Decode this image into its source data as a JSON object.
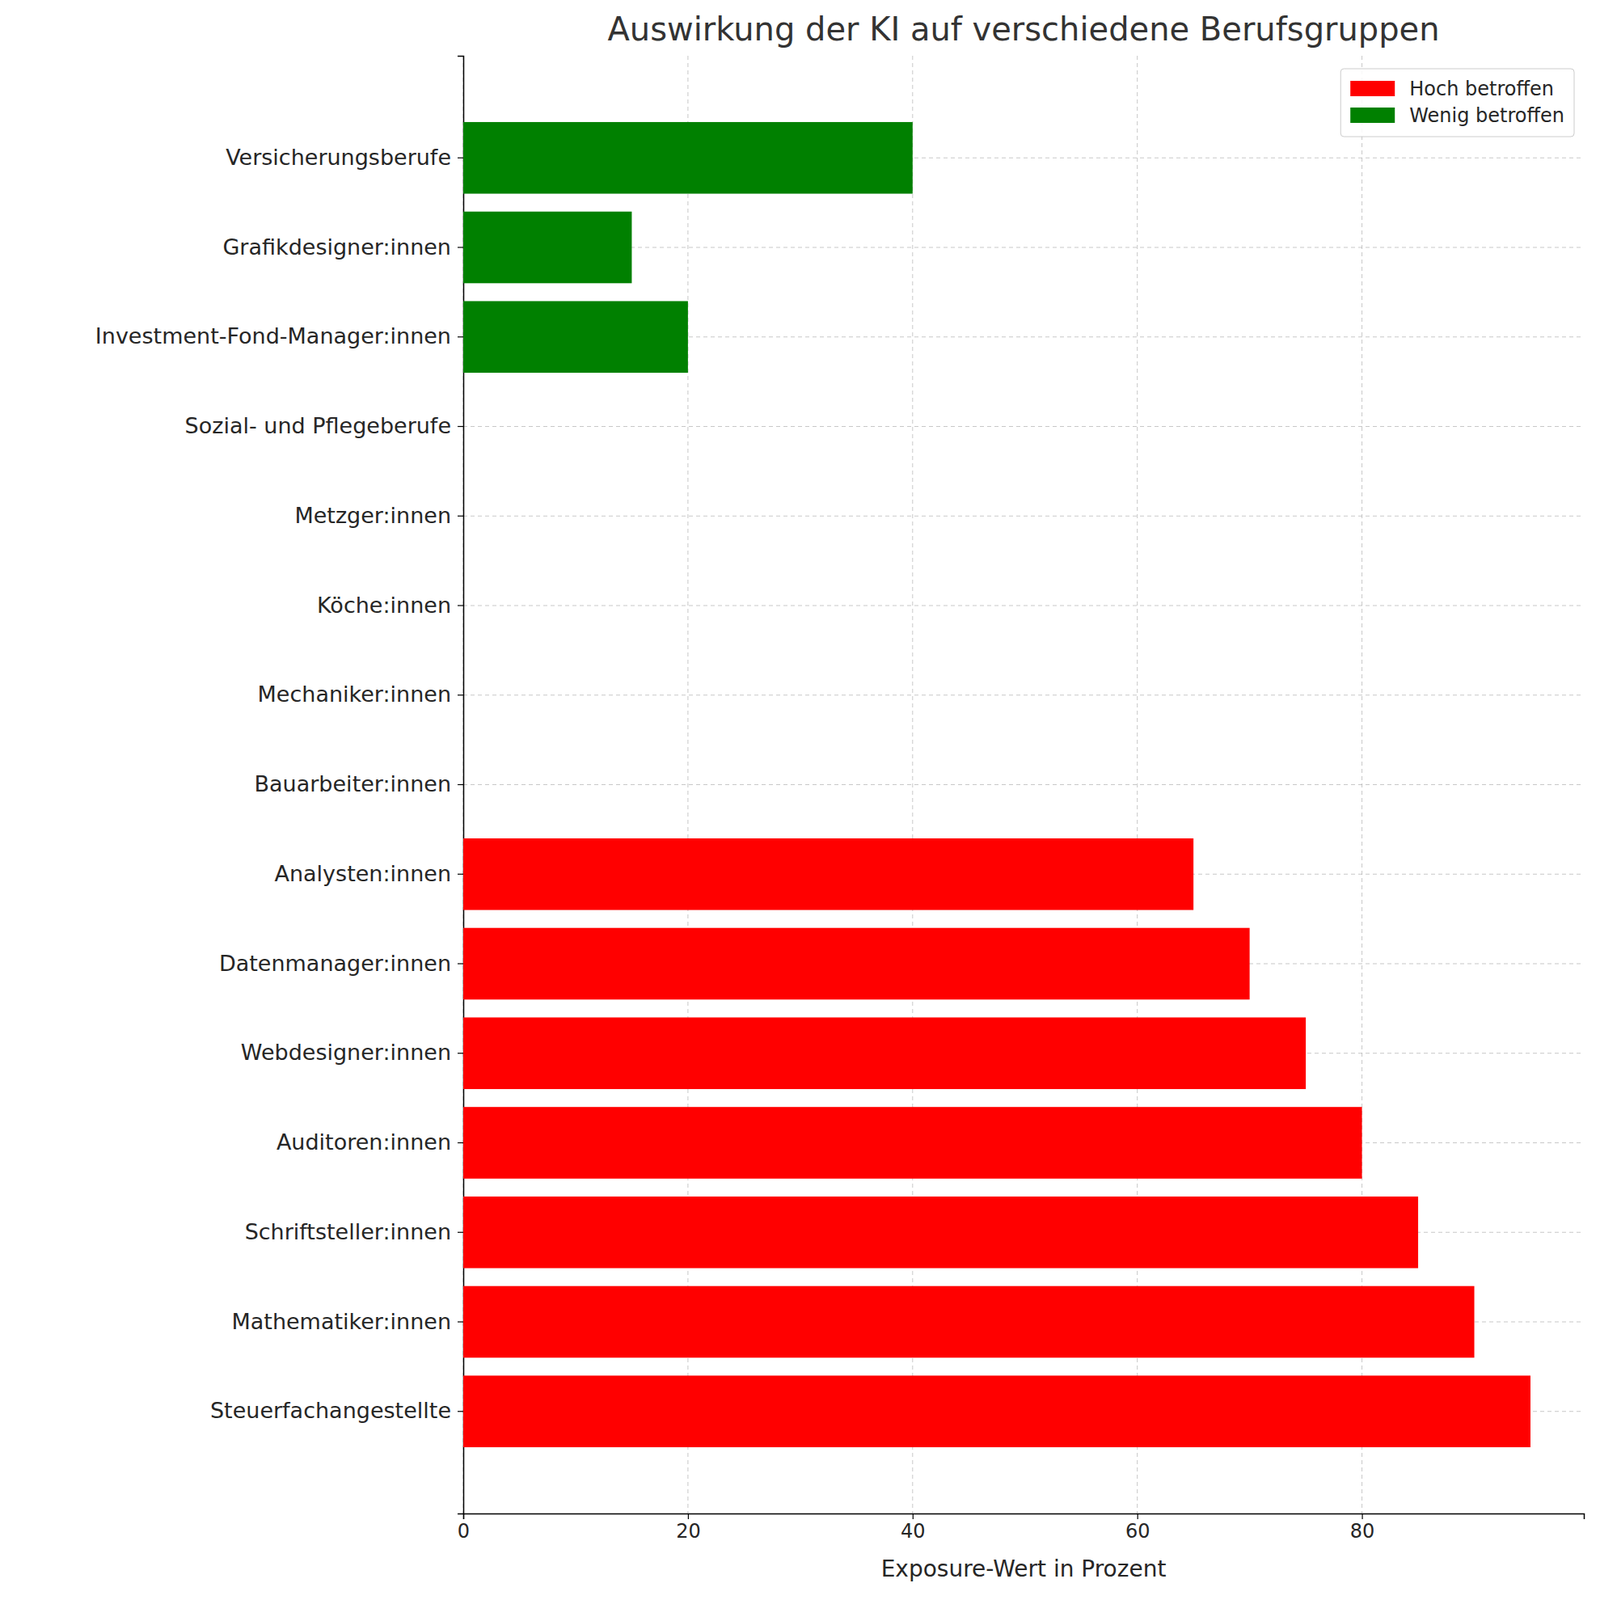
{
  "chart_data": {
    "type": "bar",
    "orientation": "horizontal",
    "title": "Auswirkung der KI auf verschiedene Berufsgruppen",
    "x_label": "Exposure-Wert in Prozent",
    "categories": [
      "Steuerfachangestellte",
      "Mathematiker:innen",
      "Schriftsteller:innen",
      "Auditoren:innen",
      "Webdesigner:innen",
      "Datenmanager:innen",
      "Analysten:innen",
      "Bauarbeiter:innen",
      "Mechaniker:innen",
      "Köche:innen",
      "Metzger:innen",
      "Sozial- und Pflegeberufe",
      "Investment-Fond-Manager:innen",
      "Grafikdesigner:innen",
      "Versicherungsberufe"
    ],
    "series": [
      {
        "name": "Hoch betroffen",
        "color": "#ff0000",
        "values": [
          95,
          90,
          85,
          80,
          75,
          70,
          65,
          null,
          null,
          null,
          null,
          null,
          null,
          null,
          null
        ]
      },
      {
        "name": "Wenig betroffen",
        "color": "#008000",
        "values": [
          null,
          null,
          null,
          null,
          null,
          null,
          null,
          0,
          0,
          0,
          0,
          0,
          20,
          15,
          40
        ]
      }
    ],
    "xlim": [
      0,
      99.75
    ],
    "xticks": [
      0,
      20,
      40,
      60,
      80
    ],
    "grid": true,
    "legend": "upper right"
  }
}
